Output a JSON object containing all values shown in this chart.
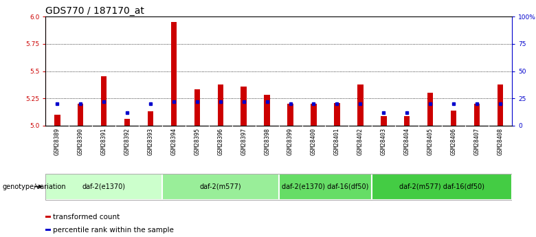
{
  "title": "GDS770 / 187170_at",
  "samples": [
    "GSM28389",
    "GSM28390",
    "GSM28391",
    "GSM28392",
    "GSM28393",
    "GSM28394",
    "GSM28395",
    "GSM28396",
    "GSM28397",
    "GSM28398",
    "GSM28399",
    "GSM28400",
    "GSM28401",
    "GSM28402",
    "GSM28403",
    "GSM28404",
    "GSM28405",
    "GSM28406",
    "GSM28407",
    "GSM28408"
  ],
  "transformed_count": [
    5.1,
    5.2,
    5.45,
    5.06,
    5.13,
    5.95,
    5.33,
    5.38,
    5.36,
    5.28,
    5.2,
    5.2,
    5.21,
    5.38,
    5.09,
    5.09,
    5.3,
    5.14,
    5.2,
    5.38
  ],
  "percentile_rank": [
    20,
    20,
    22,
    12,
    20,
    22,
    22,
    22,
    22,
    22,
    20,
    20,
    20,
    20,
    12,
    12,
    20,
    20,
    20,
    20
  ],
  "ylim_left": [
    5.0,
    6.0
  ],
  "ylim_right": [
    0,
    100
  ],
  "yticks_left": [
    5.0,
    5.25,
    5.5,
    5.75,
    6.0
  ],
  "yticks_right": [
    0,
    25,
    50,
    75,
    100
  ],
  "ytick_labels_right": [
    "0",
    "25",
    "50",
    "75",
    "100%"
  ],
  "grid_lines": [
    5.25,
    5.5,
    5.75
  ],
  "bar_color": "#cc0000",
  "dot_color": "#0000cc",
  "bar_baseline": 5.0,
  "groups": [
    {
      "label": "daf-2(e1370)",
      "start": 0,
      "end": 4,
      "color": "#ccffcc"
    },
    {
      "label": "daf-2(m577)",
      "start": 5,
      "end": 9,
      "color": "#99ee99"
    },
    {
      "label": "daf-2(e1370) daf-16(df50)",
      "start": 10,
      "end": 13,
      "color": "#66dd66"
    },
    {
      "label": "daf-2(m577) daf-16(df50)",
      "start": 14,
      "end": 19,
      "color": "#44cc44"
    }
  ],
  "genotype_label": "genotype/variation",
  "legend_items": [
    {
      "label": "transformed count",
      "color": "#cc0000"
    },
    {
      "label": "percentile rank within the sample",
      "color": "#0000cc"
    }
  ],
  "title_fontsize": 10,
  "tick_fontsize": 6.5,
  "left_tick_color": "#cc0000",
  "right_tick_color": "#0000cc",
  "bar_width": 0.25,
  "sample_label_fontsize": 6,
  "group_label_fontsize": 7,
  "legend_fontsize": 7.5
}
